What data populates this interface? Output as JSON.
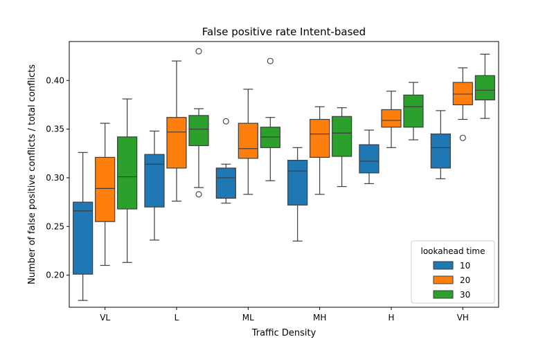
{
  "chart_data": {
    "type": "box",
    "title": "False positive rate Intent-based",
    "xlabel": "Traffic Density",
    "ylabel": "Number of false positive conflicts / total conflicts",
    "categories": [
      "VL",
      "L",
      "ML",
      "MH",
      "H",
      "VH"
    ],
    "ylim": [
      0.167,
      0.44
    ],
    "yticks": [
      0.2,
      0.25,
      0.3,
      0.35,
      0.4
    ],
    "grid": false,
    "legend": {
      "title": "lookahead time",
      "position": "lower-right"
    },
    "series": [
      {
        "name": "10",
        "color": "#1f77b4",
        "boxes": [
          {
            "whisker_low": 0.174,
            "q1": 0.201,
            "median": 0.266,
            "q3": 0.275,
            "whisker_high": 0.326,
            "outliers": []
          },
          {
            "whisker_low": 0.236,
            "q1": 0.27,
            "median": 0.314,
            "q3": 0.324,
            "whisker_high": 0.348,
            "outliers": []
          },
          {
            "whisker_low": 0.274,
            "q1": 0.279,
            "median": 0.3,
            "q3": 0.31,
            "whisker_high": 0.314,
            "outliers": [
              0.358
            ]
          },
          {
            "whisker_low": 0.235,
            "q1": 0.272,
            "median": 0.307,
            "q3": 0.318,
            "whisker_high": 0.331,
            "outliers": []
          },
          {
            "whisker_low": 0.294,
            "q1": 0.305,
            "median": 0.317,
            "q3": 0.334,
            "whisker_high": 0.349,
            "outliers": []
          },
          {
            "whisker_low": 0.299,
            "q1": 0.31,
            "median": 0.331,
            "q3": 0.345,
            "whisker_high": 0.369,
            "outliers": []
          }
        ]
      },
      {
        "name": "20",
        "color": "#ff7f0e",
        "boxes": [
          {
            "whisker_low": 0.21,
            "q1": 0.255,
            "median": 0.289,
            "q3": 0.321,
            "whisker_high": 0.356,
            "outliers": []
          },
          {
            "whisker_low": 0.276,
            "q1": 0.31,
            "median": 0.347,
            "q3": 0.362,
            "whisker_high": 0.42,
            "outliers": []
          },
          {
            "whisker_low": 0.283,
            "q1": 0.32,
            "median": 0.33,
            "q3": 0.356,
            "whisker_high": 0.391,
            "outliers": []
          },
          {
            "whisker_low": 0.283,
            "q1": 0.321,
            "median": 0.345,
            "q3": 0.36,
            "whisker_high": 0.373,
            "outliers": []
          },
          {
            "whisker_low": 0.331,
            "q1": 0.352,
            "median": 0.359,
            "q3": 0.37,
            "whisker_high": 0.389,
            "outliers": []
          },
          {
            "whisker_low": 0.36,
            "q1": 0.375,
            "median": 0.386,
            "q3": 0.398,
            "whisker_high": 0.413,
            "outliers": [
              0.341
            ]
          }
        ]
      },
      {
        "name": "30",
        "color": "#2ca02c",
        "boxes": [
          {
            "whisker_low": 0.213,
            "q1": 0.268,
            "median": 0.301,
            "q3": 0.342,
            "whisker_high": 0.381,
            "outliers": []
          },
          {
            "whisker_low": 0.29,
            "q1": 0.333,
            "median": 0.35,
            "q3": 0.364,
            "whisker_high": 0.371,
            "outliers": [
              0.43,
              0.283
            ]
          },
          {
            "whisker_low": 0.297,
            "q1": 0.331,
            "median": 0.342,
            "q3": 0.352,
            "whisker_high": 0.362,
            "outliers": [
              0.42
            ]
          },
          {
            "whisker_low": 0.291,
            "q1": 0.322,
            "median": 0.346,
            "q3": 0.363,
            "whisker_high": 0.372,
            "outliers": []
          },
          {
            "whisker_low": 0.339,
            "q1": 0.352,
            "median": 0.373,
            "q3": 0.385,
            "whisker_high": 0.398,
            "outliers": []
          },
          {
            "whisker_low": 0.361,
            "q1": 0.38,
            "median": 0.39,
            "q3": 0.405,
            "whisker_high": 0.427,
            "outliers": []
          }
        ]
      }
    ]
  }
}
